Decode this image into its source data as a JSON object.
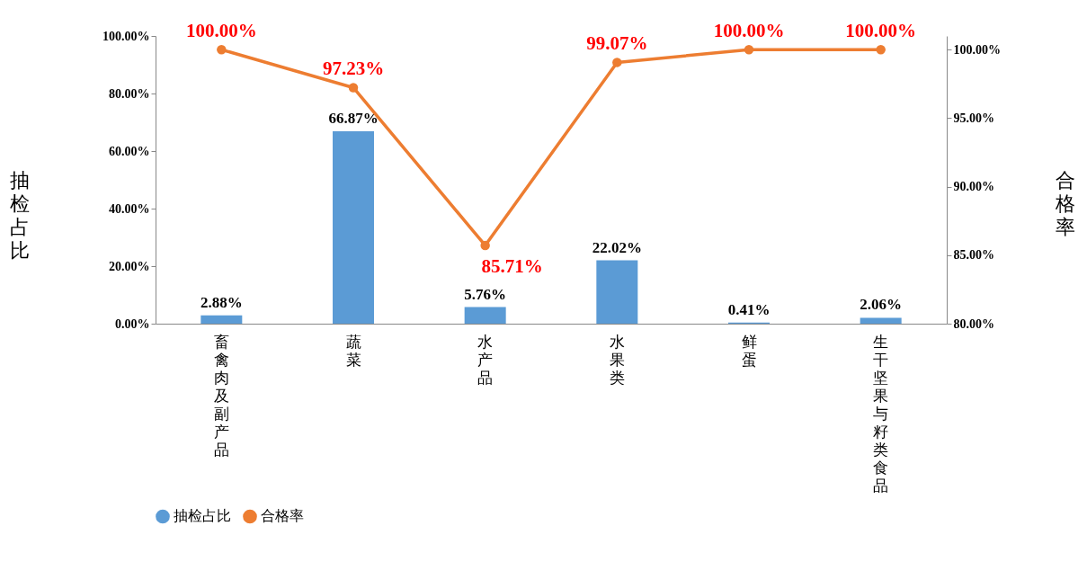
{
  "chart_data": {
    "type": "bar",
    "categories": [
      "畜禽肉及副产品",
      "蔬菜",
      "水产品",
      "水果类",
      "鲜蛋",
      "生干坚果与籽类食品"
    ],
    "ylabel": "抽检占比",
    "y2label": "合格率",
    "series": [
      {
        "name": "抽检占比",
        "color": "#5b9bd5",
        "values": [
          2.88,
          66.87,
          5.76,
          22.02,
          0.41,
          2.06
        ],
        "value_labels": [
          "2.88%",
          "66.87%",
          "5.76%",
          "22.02%",
          "0.41%",
          "2.06%"
        ]
      },
      {
        "name": "合格率",
        "type": "line",
        "axis": "y2",
        "color": "#ed7d31",
        "marker": "circle",
        "line_style": "solid",
        "values": [
          100,
          97.23,
          85.71,
          99.07,
          100,
          100
        ],
        "value_labels": [
          "100.00%",
          "97.23%",
          "85.71%",
          "99.07%",
          "100.00%",
          "100.00%"
        ]
      }
    ],
    "ylim": [
      0,
      100
    ],
    "yticks": [
      {
        "value": 0,
        "label": "0.00%"
      },
      {
        "value": 20,
        "label": "20.00%"
      },
      {
        "value": 40,
        "label": "40.00%"
      },
      {
        "value": 60,
        "label": "60.00%"
      },
      {
        "value": 80,
        "label": "80.00%"
      },
      {
        "value": 100,
        "label": "100.00%"
      }
    ],
    "y2lim": [
      80,
      101
    ],
    "y2ticks": [
      {
        "value": 80,
        "label": "80.00%"
      },
      {
        "value": 85,
        "label": "85.00%"
      },
      {
        "value": 90,
        "label": "90.00%"
      },
      {
        "value": 95,
        "label": "95.00%"
      },
      {
        "value": 100,
        "label": "100.00%"
      }
    ],
    "grid": false,
    "legend": "bottom"
  }
}
